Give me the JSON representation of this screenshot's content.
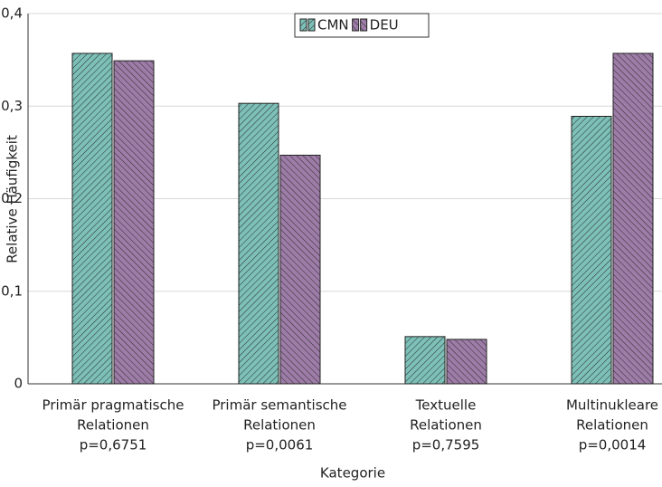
{
  "chart_data": {
    "type": "bar",
    "x_label": "Kategorie",
    "y_label": "Relative Häufigkeit",
    "categories": [
      [
        "Primär pragmatische",
        "Relationen",
        "p=0,6751"
      ],
      [
        "Primär semantische",
        "Relationen",
        "p=0,0061"
      ],
      [
        "Textuelle",
        "Relationen",
        "p=0,7595"
      ],
      [
        "Multinukleare",
        "Relationen",
        "p=0,0014"
      ]
    ],
    "series": [
      {
        "name": "CMN",
        "color": "#7dc0b8",
        "values": [
          0.357,
          0.303,
          0.051,
          0.289
        ]
      },
      {
        "name": "DEU",
        "color": "#9e7ca8",
        "values": [
          0.349,
          0.247,
          0.048,
          0.357
        ]
      }
    ],
    "ylim": [
      0,
      0.4
    ],
    "yticks": [
      0,
      {
        "value": 0.1,
        "label": "0,1"
      },
      {
        "value": 0.2,
        "label": "0,2"
      },
      {
        "value": 0.3,
        "label": "0,3"
      },
      {
        "value": 0.4,
        "label": "0,4"
      }
    ],
    "grid": true,
    "legend": "top"
  }
}
